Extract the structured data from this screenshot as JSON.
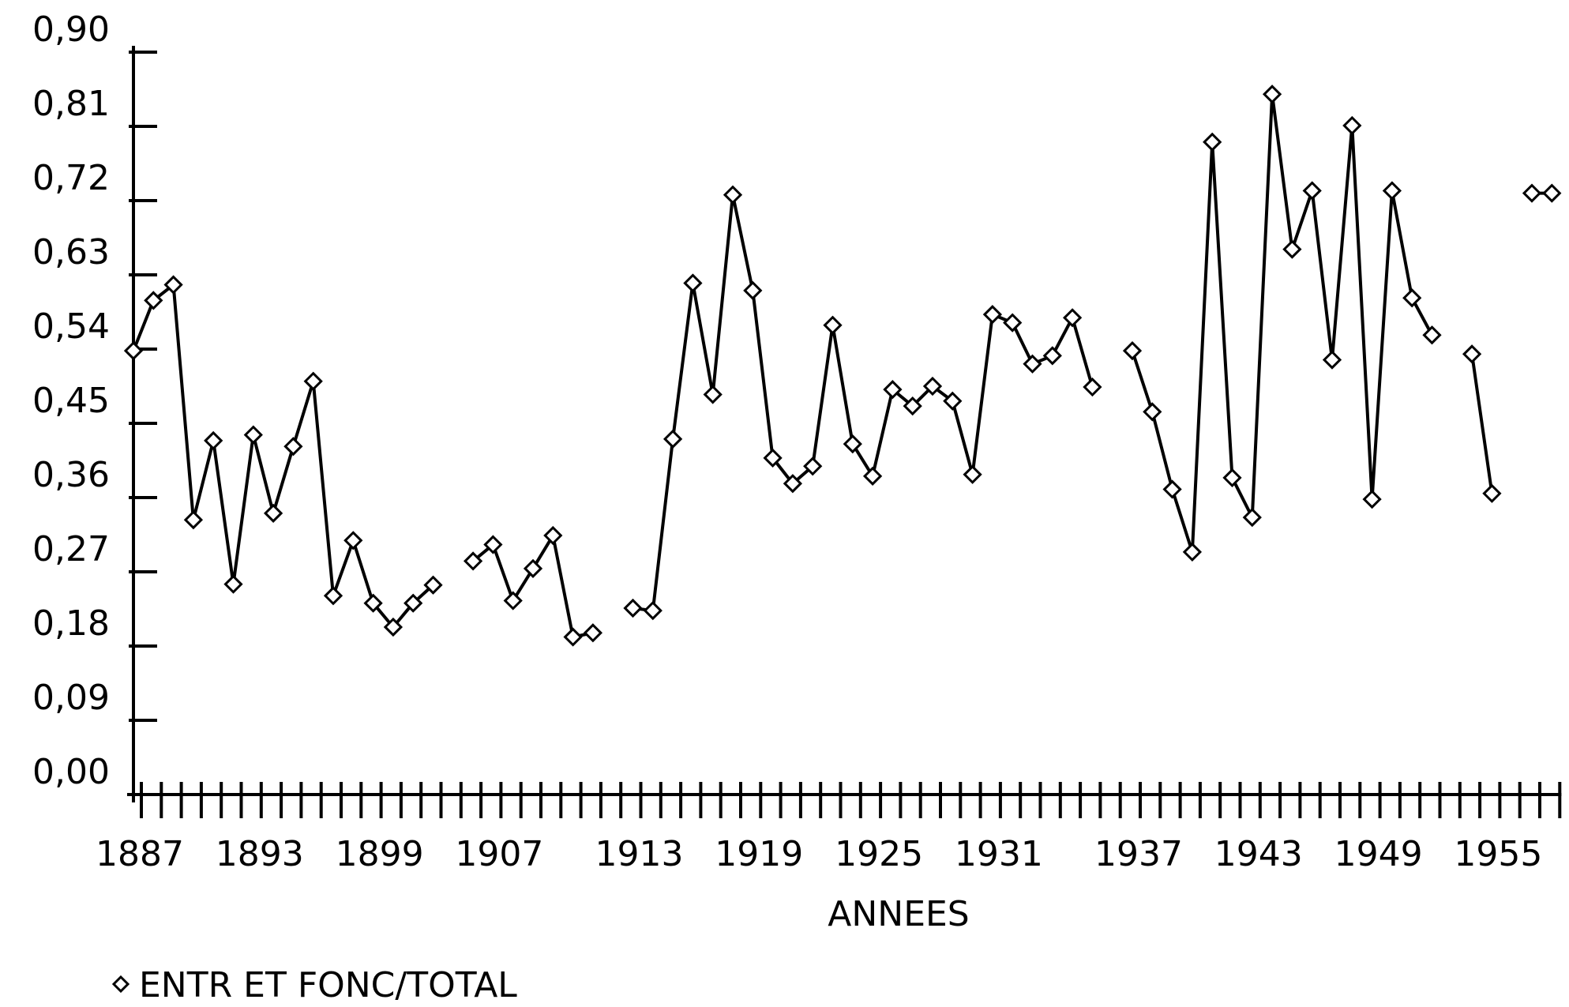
{
  "chart_data": {
    "type": "line",
    "x_label": "ANNEES",
    "categories": [
      "1887",
      null,
      null,
      null,
      null,
      null,
      "1893",
      null,
      null,
      null,
      null,
      null,
      "1899",
      null,
      null,
      null,
      null,
      null,
      "1907",
      null,
      null,
      null,
      null,
      null,
      null,
      "1913",
      null,
      null,
      null,
      null,
      null,
      "1919",
      null,
      null,
      null,
      null,
      null,
      "1925",
      null,
      null,
      null,
      null,
      null,
      "1931",
      null,
      null,
      null,
      null,
      null,
      null,
      "1937",
      null,
      null,
      null,
      null,
      null,
      "1943",
      null,
      null,
      null,
      null,
      null,
      "1949",
      null,
      null,
      null,
      null,
      null,
      "1955",
      null,
      null,
      null
    ],
    "series": [
      {
        "name": "ENTR ET FONC/TOTAL",
        "color": "#000000",
        "values": [
          0.538,
          0.599,
          0.618,
          0.333,
          0.429,
          0.255,
          0.436,
          0.341,
          0.422,
          0.501,
          0.241,
          0.308,
          0.232,
          0.203,
          0.232,
          0.254,
          null,
          0.283,
          0.303,
          0.235,
          0.274,
          0.314,
          0.191,
          0.196,
          null,
          0.226,
          0.223,
          0.431,
          0.62,
          0.485,
          0.727,
          0.611,
          0.408,
          0.377,
          0.398,
          0.569,
          0.425,
          0.386,
          0.491,
          0.471,
          0.495,
          0.477,
          0.388,
          0.582,
          0.572,
          0.522,
          0.532,
          0.578,
          0.494,
          null,
          0.538,
          0.464,
          0.37,
          0.294,
          0.791,
          0.384,
          0.336,
          0.849,
          0.661,
          0.732,
          0.527,
          0.811,
          0.358,
          0.732,
          0.602,
          0.557,
          null,
          0.534,
          0.365,
          null,
          0.729,
          0.729
        ]
      }
    ],
    "ylim": [
      0,
      0.9
    ],
    "yticks": [
      {
        "value": 0,
        "label": "0,00"
      },
      {
        "value": 0.09,
        "label": "0,09"
      },
      {
        "value": 0.18,
        "label": "0,18"
      },
      {
        "value": 0.27,
        "label": "0,27"
      },
      {
        "value": 0.36,
        "label": "0,36"
      },
      {
        "value": 0.45,
        "label": "0,45"
      },
      {
        "value": 0.54,
        "label": "0,54"
      },
      {
        "value": 0.63,
        "label": "0,63"
      },
      {
        "value": 0.72,
        "label": "0,72"
      },
      {
        "value": 0.81,
        "label": "0,81"
      },
      {
        "value": 0.9,
        "label": "0,90"
      }
    ],
    "grid": false,
    "legend": "bottom-left"
  }
}
